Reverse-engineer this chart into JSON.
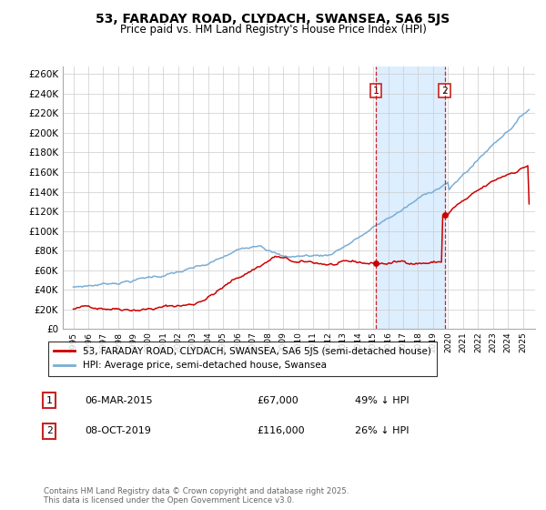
{
  "title": "53, FARADAY ROAD, CLYDACH, SWANSEA, SA6 5JS",
  "subtitle": "Price paid vs. HM Land Registry's House Price Index (HPI)",
  "legend_property": "53, FARADAY ROAD, CLYDACH, SWANSEA, SA6 5JS (semi-detached house)",
  "legend_hpi": "HPI: Average price, semi-detached house, Swansea",
  "point1_label": "1",
  "point1_date": "06-MAR-2015",
  "point1_price": "£67,000",
  "point1_hpi": "49% ↓ HPI",
  "point1_year": 2015.17,
  "point1_value": 67000,
  "point2_label": "2",
  "point2_date": "08-OCT-2019",
  "point2_price": "£116,000",
  "point2_hpi": "26% ↓ HPI",
  "point2_year": 2019.77,
  "point2_value": 116000,
  "footer": "Contains HM Land Registry data © Crown copyright and database right 2025.\nThis data is licensed under the Open Government Licence v3.0.",
  "property_color": "#cc0000",
  "hpi_color": "#7aadd4",
  "shade_color": "#ddeeff",
  "dashed_color": "#cc0000",
  "grid_color": "#cccccc",
  "background_color": "#ffffff"
}
